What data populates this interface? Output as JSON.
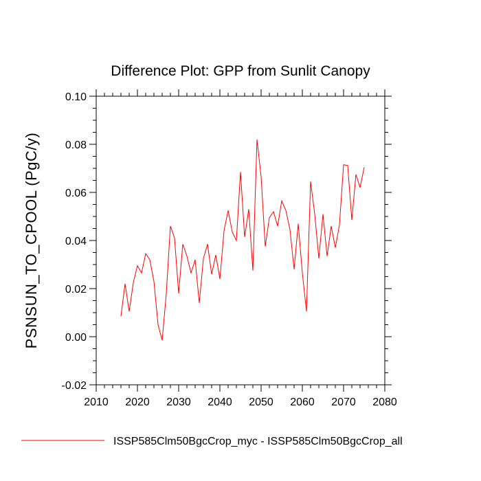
{
  "chart_data": {
    "type": "line",
    "title": "Difference Plot: GPP from Sunlit Canopy",
    "xlabel": "",
    "ylabel": "PSNSUN_TO_CPOOL  (PgC/y)",
    "xlim": [
      2010,
      2080
    ],
    "ylim": [
      -0.02,
      0.1
    ],
    "x_ticks": [
      2010,
      2020,
      2030,
      2040,
      2050,
      2060,
      2070,
      2080
    ],
    "x_tick_labels": [
      "2010",
      "2020",
      "2030",
      "2040",
      "2050",
      "2060",
      "2070",
      "2080"
    ],
    "y_ticks": [
      -0.02,
      0.0,
      0.02,
      0.04,
      0.06,
      0.08,
      0.1
    ],
    "y_tick_labels": [
      "-0.02",
      "0.00",
      "0.02",
      "0.04",
      "0.06",
      "0.08",
      "0.10"
    ],
    "grid": false,
    "legend_position": "bottom",
    "series": [
      {
        "name": "ISSP585Clm50BgcCrop_myc - ISSP585Clm50BgcCrop_all",
        "color": "#ff0000",
        "x": [
          2016,
          2017,
          2018,
          2019,
          2020,
          2021,
          2022,
          2023,
          2024,
          2025,
          2026,
          2027,
          2028,
          2029,
          2030,
          2031,
          2032,
          2033,
          2034,
          2035,
          2036,
          2037,
          2038,
          2039,
          2040,
          2041,
          2042,
          2043,
          2044,
          2045,
          2046,
          2047,
          2048,
          2049,
          2050,
          2051,
          2052,
          2053,
          2054,
          2055,
          2056,
          2057,
          2058,
          2059,
          2060,
          2061,
          2062,
          2063,
          2064,
          2065,
          2066,
          2067,
          2068,
          2069,
          2070,
          2071,
          2072,
          2073,
          2074,
          2075
        ],
        "values": [
          0.0085,
          0.022,
          0.0105,
          0.0225,
          0.0295,
          0.0265,
          0.0345,
          0.032,
          0.023,
          0.005,
          -0.0015,
          0.018,
          0.046,
          0.041,
          0.018,
          0.0385,
          0.0335,
          0.0265,
          0.032,
          0.014,
          0.0325,
          0.0385,
          0.026,
          0.034,
          0.024,
          0.044,
          0.0525,
          0.0435,
          0.04,
          0.0685,
          0.0415,
          0.053,
          0.0275,
          0.082,
          0.0665,
          0.0375,
          0.0495,
          0.052,
          0.046,
          0.0565,
          0.0525,
          0.0445,
          0.028,
          0.047,
          0.0265,
          0.0105,
          0.0645,
          0.051,
          0.0325,
          0.051,
          0.0335,
          0.046,
          0.037,
          0.0465,
          0.0715,
          0.0712,
          0.0485,
          0.0675,
          0.062,
          0.0705
        ]
      }
    ]
  }
}
